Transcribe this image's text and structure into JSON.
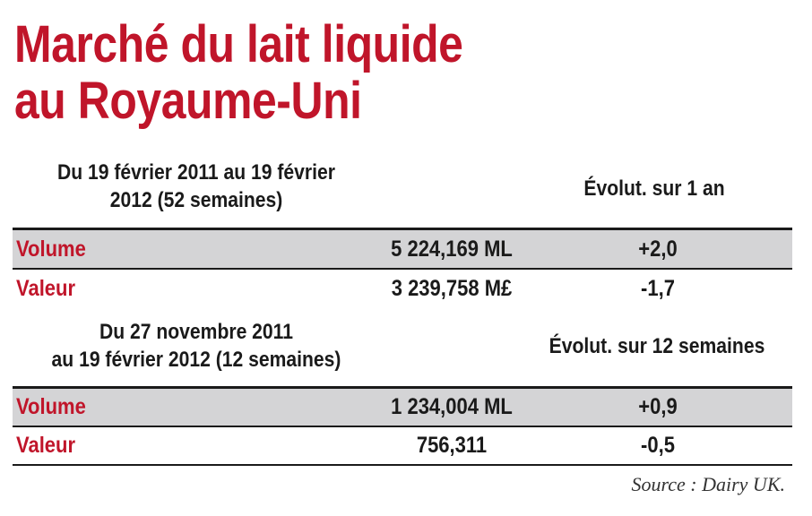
{
  "title_line1": "Marché du lait liquide",
  "title_line2": "au Royaume-Uni",
  "sections": [
    {
      "period_line1": "Du 19 février 2011 au 19 février",
      "period_line2": "2012 (52 semaines)",
      "change_header": "Évolut. sur 1 an",
      "rows": [
        {
          "label": "Volume",
          "value": "5 224,169 ML",
          "change": "+2,0"
        },
        {
          "label": "Valeur",
          "value": "3 239,758 M£",
          "change": "-1,7"
        }
      ]
    },
    {
      "period_line1": "Du 27 novembre 2011",
      "period_line2": "au 19 février 2012 (12 semaines)",
      "change_header": "Évolut. sur 12 semaines",
      "rows": [
        {
          "label": "Volume",
          "value": "1 234,004 ML",
          "change": "+0,9"
        },
        {
          "label": "Valeur",
          "value": "756,311",
          "change": "-0,5"
        }
      ]
    }
  ],
  "source": "Source : Dairy UK.",
  "colors": {
    "title": "#c0152a",
    "label": "#c0152a",
    "shade": "#d4d4d6",
    "text": "#1a1a1a"
  }
}
